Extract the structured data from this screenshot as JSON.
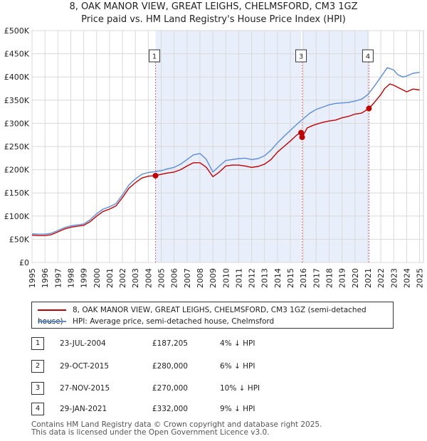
{
  "title_line1": "8, OAK MANOR VIEW, GREAT LEIGHS, CHELMSFORD, CM3 1GZ",
  "title_line2": "Price paid vs. HM Land Registry's House Price Index (HPI)",
  "chart_data": {
    "type": "line",
    "xlim": [
      1995,
      2025.3
    ],
    "ylim": [
      0,
      500000
    ],
    "y_ticks": [
      0,
      50000,
      100000,
      150000,
      200000,
      250000,
      300000,
      350000,
      400000,
      450000,
      500000
    ],
    "y_tick_labels": [
      "£0",
      "£50K",
      "£100K",
      "£150K",
      "£200K",
      "£250K",
      "£300K",
      "£350K",
      "£400K",
      "£450K",
      "£500K"
    ],
    "x_ticks": [
      1995,
      1996,
      1997,
      1998,
      1999,
      2000,
      2001,
      2002,
      2003,
      2004,
      2005,
      2006,
      2007,
      2008,
      2009,
      2010,
      2011,
      2012,
      2013,
      2014,
      2015,
      2016,
      2017,
      2018,
      2019,
      2020,
      2021,
      2022,
      2023,
      2024,
      2025
    ],
    "x_tick_labels": [
      "1995",
      "1996",
      "1997",
      "1998",
      "1999",
      "2000",
      "2001",
      "2002",
      "2003",
      "2004",
      "2005",
      "2006",
      "2007",
      "2008",
      "2009",
      "2010",
      "2011",
      "2012",
      "2013",
      "2014",
      "2015",
      "2016",
      "2017",
      "2018",
      "2019",
      "2020",
      "2021",
      "2022",
      "2023",
      "2024",
      "2025"
    ],
    "grid": true,
    "shaded_ranges": [
      [
        2004.56,
        2015.83
      ],
      [
        2015.91,
        2021.08
      ]
    ],
    "series": [
      {
        "name": "8, OAK MANOR VIEW, GREAT LEIGHS, CHELMSFORD, CM3 1GZ (semi-detached house)",
        "color": "#c00000",
        "x": [
          1995,
          1995.5,
          1996,
          1996.5,
          1997,
          1997.5,
          1998,
          1998.5,
          1999,
          1999.5,
          2000,
          2000.5,
          2001,
          2001.5,
          2002,
          2002.5,
          2003,
          2003.5,
          2004,
          2004.56,
          2005,
          2005.5,
          2006,
          2006.5,
          2007,
          2007.5,
          2008,
          2008.5,
          2009,
          2009.5,
          2010,
          2010.5,
          2011,
          2011.5,
          2012,
          2012.5,
          2013,
          2013.5,
          2014,
          2014.5,
          2015,
          2015.5,
          2015.83,
          2015.91,
          2016.3,
          2016.7,
          2017,
          2017.5,
          2018,
          2018.5,
          2019,
          2019.5,
          2020,
          2020.5,
          2021.08,
          2021.5,
          2022,
          2022.3,
          2022.7,
          2023,
          2023.5,
          2024,
          2024.5,
          2025
        ],
        "y": [
          59000,
          58000,
          58000,
          60000,
          66000,
          72000,
          76000,
          78000,
          80000,
          88000,
          100000,
          110000,
          115000,
          122000,
          140000,
          160000,
          172000,
          182000,
          186000,
          187205,
          190000,
          193000,
          195000,
          200000,
          208000,
          215000,
          215000,
          205000,
          185000,
          195000,
          208000,
          210000,
          210000,
          208000,
          205000,
          207000,
          212000,
          222000,
          238000,
          250000,
          262000,
          275000,
          280000,
          270000,
          290000,
          295000,
          298000,
          302000,
          305000,
          307000,
          312000,
          315000,
          320000,
          322000,
          332000,
          345000,
          362000,
          375000,
          385000,
          382000,
          375000,
          368000,
          374000,
          372000
        ]
      },
      {
        "name": "HPI: Average price, semi-detached house, Chelmsford",
        "color": "#5b8ed6",
        "x": [
          1995,
          1995.5,
          1996,
          1996.5,
          1997,
          1997.5,
          1998,
          1998.5,
          1999,
          1999.5,
          2000,
          2000.5,
          2001,
          2001.5,
          2002,
          2002.5,
          2003,
          2003.5,
          2004,
          2004.56,
          2005,
          2005.5,
          2006,
          2006.5,
          2007,
          2007.5,
          2008,
          2008.5,
          2009,
          2009.5,
          2010,
          2010.5,
          2011,
          2011.5,
          2012,
          2012.5,
          2013,
          2013.5,
          2014,
          2014.5,
          2015,
          2015.5,
          2016,
          2016.5,
          2017,
          2017.5,
          2018,
          2018.5,
          2019,
          2019.5,
          2020,
          2020.5,
          2021,
          2021.5,
          2022,
          2022.5,
          2023,
          2023.3,
          2023.7,
          2024,
          2024.5,
          2025
        ],
        "y": [
          62000,
          61000,
          61000,
          63000,
          69000,
          75000,
          79000,
          81000,
          83000,
          92000,
          105000,
          115000,
          120000,
          127000,
          146000,
          167000,
          180000,
          190000,
          194000,
          196000,
          198000,
          202000,
          205000,
          212000,
          222000,
          232000,
          235000,
          222000,
          195000,
          208000,
          220000,
          222000,
          224000,
          225000,
          222000,
          224000,
          230000,
          242000,
          258000,
          272000,
          285000,
          298000,
          310000,
          322000,
          330000,
          335000,
          340000,
          343000,
          344000,
          345000,
          348000,
          352000,
          362000,
          380000,
          400000,
          420000,
          415000,
          405000,
          400000,
          402000,
          408000,
          410000
        ]
      }
    ],
    "sales": [
      {
        "label": "1",
        "x": 2004.56,
        "y": 187205
      },
      {
        "label": "2",
        "x": 2015.83,
        "y": 280000
      },
      {
        "label": "3",
        "x": 2015.91,
        "y": 270000
      },
      {
        "label": "4",
        "x": 2021.08,
        "y": 332000
      }
    ],
    "event_markers": [
      {
        "label": "1",
        "x": 2004.56
      },
      {
        "label": "3",
        "x": 2015.91
      },
      {
        "label": "4",
        "x": 2021.08
      }
    ]
  },
  "legend": {
    "property_label": "8, OAK MANOR VIEW, GREAT LEIGHS, CHELMSFORD, CM3 1GZ (semi-detached house)",
    "hpi_label": "HPI: Average price, semi-detached house, Chelmsford",
    "property_color": "#c00000",
    "hpi_color": "#5b8ed6"
  },
  "transactions": [
    {
      "num": "1",
      "date": "23-JUL-2004",
      "price": "£187,205",
      "hpi": "4% ↓ HPI"
    },
    {
      "num": "2",
      "date": "29-OCT-2015",
      "price": "£280,000",
      "hpi": "6% ↓ HPI"
    },
    {
      "num": "3",
      "date": "27-NOV-2015",
      "price": "£270,000",
      "hpi": "10% ↓ HPI"
    },
    {
      "num": "4",
      "date": "29-JAN-2021",
      "price": "£332,000",
      "hpi": "9% ↓ HPI"
    }
  ],
  "footer_line1": "Contains HM Land Registry data © Crown copyright and database right 2025.",
  "footer_line2": "This data is licensed under the Open Government Licence v3.0."
}
